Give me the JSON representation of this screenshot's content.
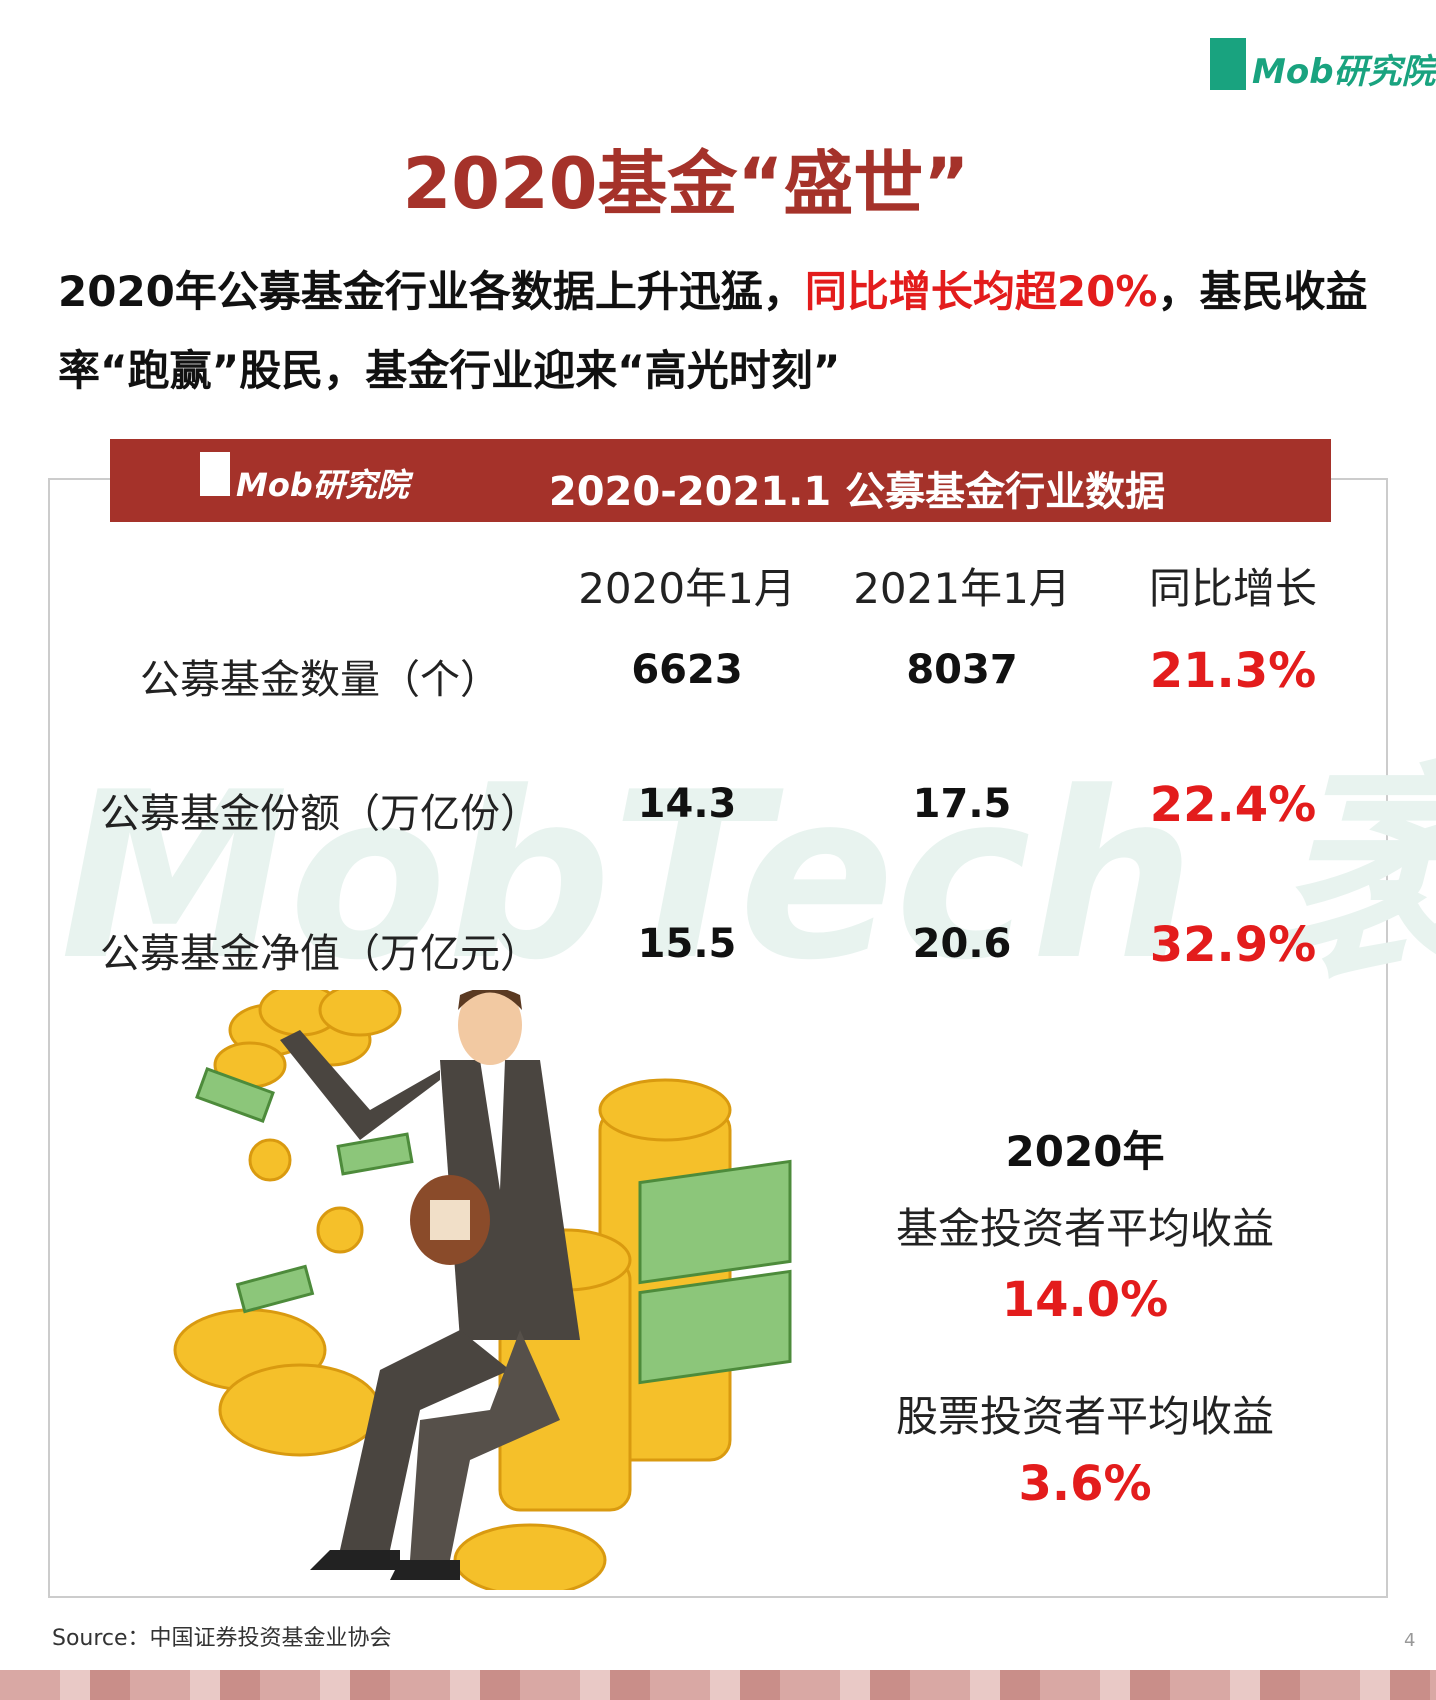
{
  "logo": "Mob研究院",
  "title": "2020基金“盛世”",
  "subtitle": {
    "part1": "2020年公募基金行业各数据上升迅猛，",
    "highlight": "同比增长均超20%",
    "part2": "，基民收益率“跑赢”股民，基金行业迎来“高光时刻”"
  },
  "table": {
    "banner_logo": "Mob研究院",
    "title": "2020-2021.1 公募基金行业数据",
    "columns": [
      "2020年1月",
      "2021年1月",
      "同比增长"
    ],
    "rows": [
      [
        "公募基金数量（个）",
        "6623",
        "8037",
        "21.3%"
      ],
      [
        "公募基金份额（万亿份）",
        "14.3",
        "17.5",
        "22.4%"
      ],
      [
        "公募基金净值（万亿元）",
        "15.5",
        "20.6",
        "32.9%"
      ]
    ]
  },
  "watermark": "MobTech 袤博",
  "returns": {
    "year": "2020年",
    "items": [
      {
        "label": "基金投资者平均收益",
        "value": "14.0%"
      },
      {
        "label": "股票投资者平均收益",
        "value": "3.6%"
      }
    ]
  },
  "source": "Source：中国证券投资基金业协会",
  "page_number": "4"
}
